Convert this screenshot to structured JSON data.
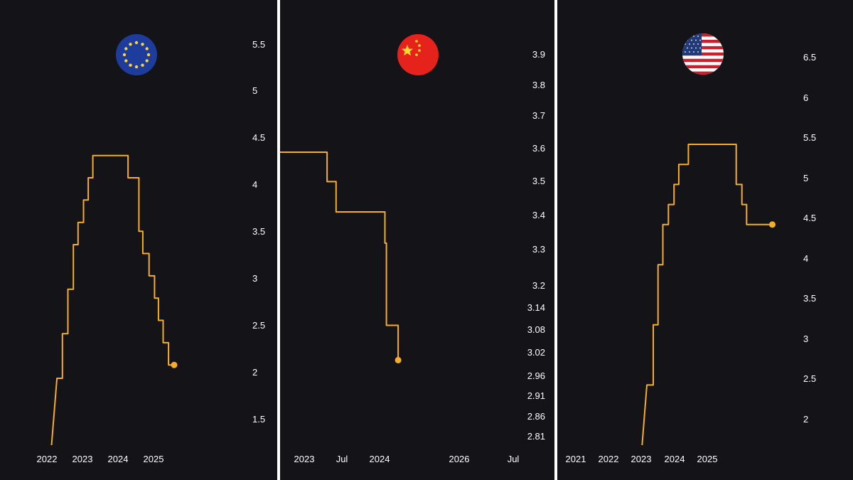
{
  "colors": {
    "background": "#141317",
    "divider": "#ffffff",
    "line": "#f5ae2a",
    "text": "#ffffff"
  },
  "icons": [
    "brand-logo-icon",
    "eu-flag-icon",
    "china-flag-icon",
    "us-flag-icon"
  ],
  "chart_data": [
    {
      "type": "line",
      "region_icon": "eu-flag-icon",
      "x_ticks": [
        "2022",
        "2023",
        "2024",
        "2025"
      ],
      "y_ticks": [
        "1.5",
        "2",
        "2.5",
        "3",
        "3.5",
        "4",
        "4.5",
        "5",
        "5.5"
      ],
      "ylim": [
        1.25,
        5.75
      ],
      "xlim": [
        "2022-01-01",
        "2025-09-01"
      ],
      "grid": false,
      "series": [
        {
          "points": [
            [
              "2022-07-27",
              1.25
            ],
            [
              "2022-09-14",
              2.0
            ],
            [
              "2022-11-02",
              2.0
            ],
            [
              "2022-11-02",
              2.5
            ],
            [
              "2022-12-21",
              2.5
            ],
            [
              "2022-12-21",
              3.0
            ],
            [
              "2023-02-08",
              3.0
            ],
            [
              "2023-02-08",
              3.5
            ],
            [
              "2023-03-22",
              3.5
            ],
            [
              "2023-03-22",
              3.75
            ],
            [
              "2023-05-10",
              3.75
            ],
            [
              "2023-05-10",
              4.0
            ],
            [
              "2023-06-21",
              4.0
            ],
            [
              "2023-06-21",
              4.25
            ],
            [
              "2023-08-02",
              4.25
            ],
            [
              "2023-08-02",
              4.5
            ],
            [
              "2024-06-12",
              4.5
            ],
            [
              "2024-06-12",
              4.25
            ],
            [
              "2024-09-18",
              4.25
            ],
            [
              "2024-09-18",
              3.65
            ],
            [
              "2024-10-23",
              3.65
            ],
            [
              "2024-10-23",
              3.4
            ],
            [
              "2024-12-18",
              3.4
            ],
            [
              "2024-12-18",
              3.15
            ],
            [
              "2025-02-05",
              3.15
            ],
            [
              "2025-02-05",
              2.9
            ],
            [
              "2025-03-12",
              2.9
            ],
            [
              "2025-03-12",
              2.65
            ],
            [
              "2025-04-23",
              2.65
            ],
            [
              "2025-04-23",
              2.4
            ],
            [
              "2025-06-11",
              2.4
            ],
            [
              "2025-06-11",
              2.15
            ],
            [
              "2025-07-31",
              2.15
            ]
          ],
          "end_marker": true
        }
      ]
    },
    {
      "type": "line",
      "region_icon": "china-flag-icon",
      "x_ticks": [
        "2023",
        "Jul",
        "2024",
        "2026",
        "Jul"
      ],
      "y_ticks": [
        "2.81",
        "2.86",
        "2.91",
        "2.96",
        "3.02",
        "3.08",
        "3.14",
        "3.2",
        "3.3",
        "3.4",
        "3.5",
        "3.6",
        "3.7",
        "3.8",
        "3.9"
      ],
      "ylim": [
        2.78,
        4.02
      ],
      "log_scale": true,
      "xlim": [
        "2022-08-01",
        "2026-12-31"
      ],
      "grid": false,
      "series": [
        {
          "points": [
            [
              "2022-08-01",
              3.65
            ],
            [
              "2023-06-20",
              3.65
            ],
            [
              "2023-06-20",
              3.55
            ],
            [
              "2023-08-21",
              3.55
            ],
            [
              "2023-08-21",
              3.45
            ],
            [
              "2024-07-22",
              3.45
            ],
            [
              "2024-07-22",
              3.35
            ],
            [
              "2024-08-01",
              3.35
            ],
            [
              "2024-08-01",
              3.1
            ],
            [
              "2024-10-21",
              3.1
            ],
            [
              "2024-10-21",
              3.0
            ]
          ],
          "end_marker": true
        }
      ]
    },
    {
      "type": "line",
      "region_icon": "us-flag-icon",
      "x_ticks": [
        "2021",
        "2022",
        "2023",
        "2024",
        "2025"
      ],
      "y_ticks": [
        "2",
        "2.5",
        "3",
        "3.5",
        "4",
        "4.5",
        "5",
        "5.5",
        "6",
        "6.5"
      ],
      "ylim": [
        1.75,
        6.75
      ],
      "xlim": [
        "2020-06-01",
        "2027-04-01"
      ],
      "grid": false,
      "series": [
        {
          "points": [
            [
              "2022-06-15",
              1.75
            ],
            [
              "2022-07-27",
              2.5
            ],
            [
              "2022-09-21",
              2.5
            ],
            [
              "2022-09-21",
              3.25
            ],
            [
              "2022-11-02",
              3.25
            ],
            [
              "2022-11-02",
              4.0
            ],
            [
              "2022-12-14",
              4.0
            ],
            [
              "2022-12-14",
              4.5
            ],
            [
              "2023-02-01",
              4.5
            ],
            [
              "2023-02-01",
              4.75
            ],
            [
              "2023-03-22",
              4.75
            ],
            [
              "2023-03-22",
              5.0
            ],
            [
              "2023-05-03",
              5.0
            ],
            [
              "2023-05-03",
              5.25
            ],
            [
              "2023-07-26",
              5.25
            ],
            [
              "2023-07-26",
              5.5
            ],
            [
              "2024-09-18",
              5.5
            ],
            [
              "2024-09-18",
              5.0
            ],
            [
              "2024-11-07",
              5.0
            ],
            [
              "2024-11-07",
              4.75
            ],
            [
              "2024-12-18",
              4.75
            ],
            [
              "2024-12-18",
              4.5
            ],
            [
              "2025-08-01",
              4.5
            ]
          ],
          "end_marker": true
        }
      ]
    }
  ]
}
